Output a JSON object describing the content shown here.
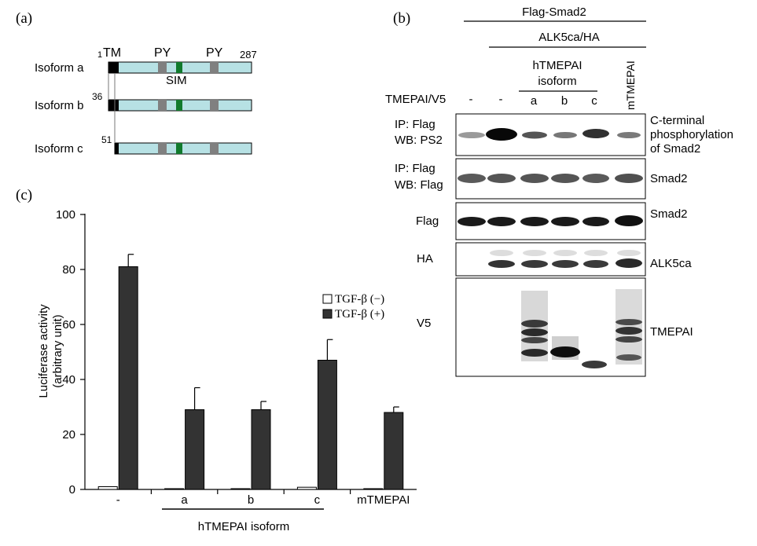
{
  "panel_a": {
    "label": "(a)",
    "isoforms": [
      {
        "name": "Isoform a",
        "start": "1",
        "end": "287"
      },
      {
        "name": "Isoform b",
        "start": "36"
      },
      {
        "name": "Isoform c",
        "start": "51"
      }
    ],
    "domains": {
      "tm": "TM",
      "py1": "PY",
      "py2": "PY",
      "sim": "SIM"
    },
    "colors": {
      "protein": "#b7e1e4",
      "tm": "#000000",
      "py": "#808080",
      "sim": "#117a2c"
    }
  },
  "panel_b": {
    "label": "(b)",
    "header_flag": "Flag-Smad2",
    "header_alk": "ALK5ca/HA",
    "header_iso_line1": "hTMEPAI",
    "header_iso_line2": "isoform",
    "header_mtmepai": "mTMEPAI",
    "row_label": "TMEPAI/V5",
    "lanes": [
      "-",
      "-",
      "a",
      "b",
      "c"
    ],
    "blots": [
      {
        "left_line1": "IP: Flag",
        "left_line2": "WB: PS2",
        "right_line1": "C-terminal",
        "right_line2": "phosphorylation",
        "right_line3": "of Smad2"
      },
      {
        "left_line1": "IP: Flag",
        "left_line2": "WB: Flag",
        "right_line1": "Smad2"
      },
      {
        "left_line1": "Flag",
        "right_line1": "Smad2"
      },
      {
        "left_line1": "HA",
        "right_line1": "ALK5ca"
      },
      {
        "left_line1": "V5",
        "right_line1": "TMEPAI"
      }
    ]
  },
  "panel_c": {
    "label": "(c)",
    "chart_data": {
      "type": "bar",
      "categories": [
        "-",
        "a",
        "b",
        "c",
        "mTMEPAI"
      ],
      "series": [
        {
          "name": "TGF-β (−)",
          "values": [
            1,
            0.2,
            0.2,
            0.8,
            0.2
          ],
          "errors": [
            0,
            0,
            0,
            0,
            0
          ],
          "color": "#ffffff"
        },
        {
          "name": "TGF-β (+)",
          "values": [
            81,
            29,
            29,
            47,
            28
          ],
          "errors": [
            4.5,
            8,
            3,
            7.5,
            2
          ],
          "color": "#333333"
        }
      ],
      "ylabel_line1": "Luciferase activity",
      "ylabel_line2": "(arbitrary unit)",
      "ylim": [
        0,
        100
      ],
      "yticks": [
        0,
        20,
        40,
        60,
        80,
        100
      ],
      "group_label": "hTMEPAI isoform",
      "legend_position": "right"
    }
  }
}
